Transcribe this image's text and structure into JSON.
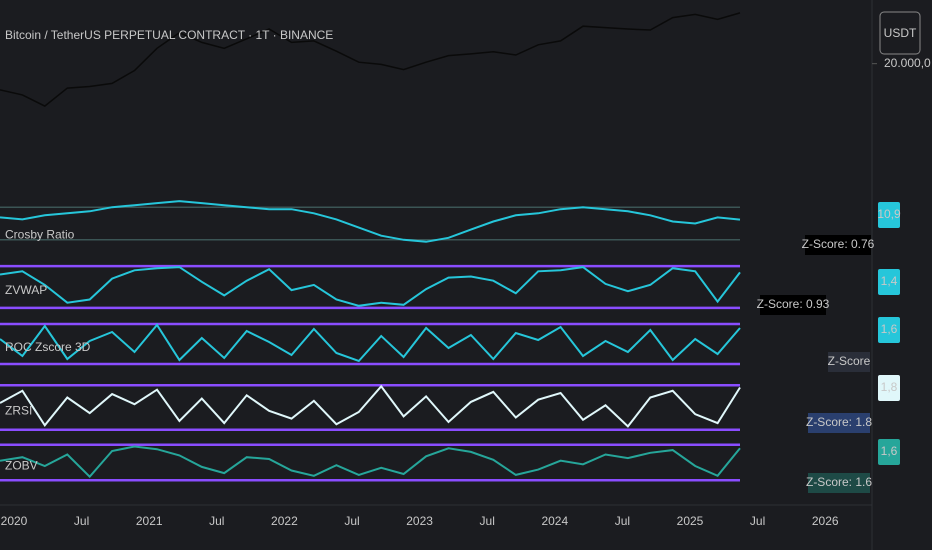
{
  "x_axis": {
    "labels": [
      "2020",
      "Jul",
      "2021",
      "Jul",
      "2022",
      "Jul",
      "2023",
      "Jul",
      "2024",
      "Jul",
      "2025",
      "Jul",
      "2026"
    ]
  },
  "chart_data": [
    {
      "type": "line",
      "title": "Bitcoin / TetherUS PERPETUAL CONTRACT · 1T · BINANCE",
      "currency": "USDT",
      "log_scale": true,
      "color": "#0a0a0a",
      "ylim": [
        380,
        160000
      ],
      "yticks": [
        {
          "value": 20000,
          "label": "20.000,0"
        }
      ],
      "values": [
        8500,
        7200,
        5000,
        9000,
        9500,
        10500,
        16000,
        33000,
        55000,
        40000,
        33000,
        45000,
        62000,
        40000,
        42000,
        30000,
        21000,
        19500,
        16500,
        21000,
        26000,
        27500,
        29500,
        26500,
        37000,
        42000,
        68000,
        65000,
        62000,
        60000,
        90000,
        100000,
        85000,
        105000
      ]
    },
    {
      "type": "line",
      "title": "Crosby Ratio",
      "color": "#26c6da",
      "ylim": [
        -4,
        22
      ],
      "levels": [
        17,
        1
      ],
      "level_color": "#3b5555",
      "last_label": {
        "value": 10.9,
        "label": "10,9"
      },
      "annotation": "Z-Score: 0.76",
      "annotation_color": "#000000",
      "values": [
        12,
        11,
        13,
        14,
        15,
        17,
        18,
        19,
        20,
        19,
        18,
        17,
        16,
        16,
        14,
        11,
        7,
        3,
        1,
        0,
        2,
        6,
        10,
        13,
        14,
        16,
        17,
        16,
        15,
        13,
        10,
        9,
        12,
        10.9
      ]
    },
    {
      "type": "line",
      "title": "ZVWAP",
      "color": "#26c6da",
      "ylim": [
        -2.2,
        2.2
      ],
      "levels": [
        -2,
        2
      ],
      "level_color": "#8a4dff",
      "last_label": {
        "value": 1.4,
        "label": "1,4"
      },
      "annotation": "Z-Score: 0.93",
      "annotation_color": "#000000",
      "values": [
        1.2,
        1.5,
        0.2,
        -1.5,
        -1.2,
        0.8,
        1.6,
        1.8,
        1.9,
        0.5,
        -0.8,
        0.6,
        1.7,
        -0.3,
        0.2,
        -1.2,
        -1.8,
        -1.5,
        -1.7,
        -0.2,
        0.9,
        1.0,
        0.6,
        -0.6,
        1.5,
        1.6,
        1.9,
        0.3,
        -0.4,
        0.2,
        1.8,
        1.5,
        -1.4,
        1.4
      ]
    },
    {
      "type": "line",
      "title": "ROC Zscore 3D",
      "color": "#26c6da",
      "ylim": [
        -2.2,
        2.2
      ],
      "levels": [
        -2,
        2
      ],
      "level_color": "#8a4dff",
      "last_label": {
        "value": 1.6,
        "label": "1,6"
      },
      "annotation": "Z-Score",
      "annotation_color": "#2a2e39",
      "values": [
        0.5,
        -1.2,
        1.8,
        -1.5,
        0.3,
        1.2,
        -0.8,
        1.9,
        -1.6,
        0.6,
        -1.4,
        1.3,
        0.2,
        -1.1,
        1.5,
        -0.9,
        -1.7,
        0.8,
        -1.3,
        1.6,
        -0.4,
        0.9,
        -1.5,
        1.1,
        0.4,
        1.7,
        -1.2,
        0.3,
        -0.8,
        1.4,
        -1.6,
        0.5,
        -1.0,
        1.6
      ]
    },
    {
      "type": "line",
      "title": "ZRSI",
      "color": "#e0f7fa",
      "ylim": [
        -2.2,
        2.2
      ],
      "levels": [
        -2,
        2
      ],
      "level_color": "#8a4dff",
      "last_label": {
        "value": 1.8,
        "label": "1,8"
      },
      "annotation": "Z-Score: 1.8",
      "annotation_color": "#2a3f6e",
      "values": [
        0.4,
        1.5,
        -1.6,
        0.9,
        -0.5,
        1.2,
        0.3,
        1.6,
        -1.2,
        0.8,
        -1.4,
        1.1,
        -0.3,
        -1.0,
        0.6,
        -1.5,
        -0.4,
        1.9,
        -0.8,
        1.0,
        -1.3,
        0.5,
        1.4,
        -0.9,
        0.7,
        1.3,
        -1.1,
        0.2,
        -1.7,
        0.9,
        1.5,
        -0.6,
        -1.4,
        1.8
      ]
    },
    {
      "type": "line",
      "title": "ZOBV",
      "color": "#26a69a",
      "ylim": [
        -2.2,
        2.2
      ],
      "levels": [
        -2,
        2
      ],
      "level_color": "#8a4dff",
      "last_label": {
        "value": 1.6,
        "label": "1,6"
      },
      "annotation": "Z-Score: 1.6",
      "annotation_color": "#1e4a46",
      "values": [
        0.2,
        0.6,
        -0.4,
        0.9,
        -1.6,
        1.3,
        1.8,
        1.5,
        0.8,
        -0.5,
        -1.2,
        0.6,
        0.4,
        -0.9,
        -1.5,
        -0.3,
        -1.4,
        -0.6,
        -1.3,
        0.7,
        1.6,
        1.2,
        0.3,
        -1.4,
        -0.8,
        0.2,
        -0.2,
        0.9,
        0.5,
        1.1,
        1.4,
        -0.4,
        -1.5,
        1.6
      ]
    }
  ]
}
